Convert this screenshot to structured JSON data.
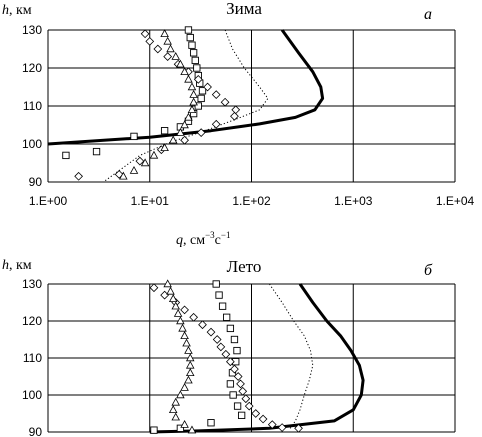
{
  "chart_data": [
    {
      "type": "scatter",
      "panel_label": "a",
      "title": "Зима",
      "ylabel_var": "h",
      "ylabel_unit": ", км",
      "xscale": "log",
      "xlim": [
        1,
        10000
      ],
      "ylim": [
        90,
        130
      ],
      "xticks": [
        "1.E+00",
        "1.E+01",
        "1.E+02",
        "1.E+03",
        "1.E+04"
      ],
      "yticks": [
        "90",
        "100",
        "110",
        "120",
        "130"
      ],
      "grid": true,
      "series": [
        {
          "style": "thick-line",
          "points": [
            [
              200,
              130
            ],
            [
              290,
              124
            ],
            [
              400,
              119
            ],
            [
              480,
              115
            ],
            [
              500,
              112
            ],
            [
              420,
              109
            ],
            [
              270,
              107
            ],
            [
              120,
              105.3
            ],
            [
              40,
              103.5
            ],
            [
              10,
              101.8
            ],
            [
              1,
              100
            ]
          ]
        },
        {
          "style": "dotted-line",
          "points": [
            [
              55,
              130
            ],
            [
              65,
              125
            ],
            [
              85,
              120
            ],
            [
              120,
              115
            ],
            [
              145,
              112
            ],
            [
              120,
              109
            ],
            [
              70,
              106.5
            ],
            [
              35,
              103.5
            ],
            [
              16,
              100.5
            ],
            [
              8,
              97
            ],
            [
              5,
              93
            ],
            [
              3.5,
              90
            ]
          ]
        },
        {
          "style": "small-squares",
          "points": [
            [
              24,
              130
            ],
            [
              25,
              128
            ],
            [
              26,
              126
            ],
            [
              27,
              124
            ],
            [
              28,
              122
            ],
            [
              29,
              120
            ],
            [
              30,
              118
            ],
            [
              31,
              116
            ],
            [
              33,
              114
            ],
            [
              32,
              112
            ],
            [
              30,
              110
            ],
            [
              27,
              108
            ],
            [
              24,
              106
            ],
            [
              20,
              104.5
            ],
            [
              14,
              103.5
            ],
            [
              7,
              102
            ],
            [
              3,
              98
            ],
            [
              1.5,
              97
            ]
          ]
        },
        {
          "style": "diamonds",
          "points": [
            [
              9,
              129
            ],
            [
              10,
              127
            ],
            [
              12,
              125
            ],
            [
              15,
              123
            ],
            [
              19,
              121
            ],
            [
              24,
              119
            ],
            [
              30,
              117
            ],
            [
              37,
              115
            ],
            [
              45,
              113
            ],
            [
              55,
              111
            ],
            [
              70,
              109
            ],
            [
              68,
              107.3
            ],
            [
              45,
              105.2
            ],
            [
              32,
              103
            ],
            [
              22,
              101
            ],
            [
              13,
              98.5
            ],
            [
              8,
              95.5
            ],
            [
              5,
              92
            ],
            [
              2,
              91.5
            ]
          ]
        },
        {
          "style": "triangles",
          "points": [
            [
              14,
              129
            ],
            [
              15,
              127
            ],
            [
              16,
              125
            ],
            [
              18,
              123
            ],
            [
              20,
              121
            ],
            [
              22,
              119
            ],
            [
              24,
              117
            ],
            [
              26,
              115
            ],
            [
              27,
              113
            ],
            [
              27,
              111
            ],
            [
              26,
              109
            ],
            [
              24,
              107
            ],
            [
              22,
              105
            ],
            [
              20,
              103
            ],
            [
              17,
              101
            ],
            [
              14,
              99
            ],
            [
              11,
              97
            ],
            [
              9,
              95
            ],
            [
              7,
              93
            ],
            [
              5.5,
              91.5
            ]
          ]
        }
      ]
    },
    {
      "type": "scatter",
      "panel_label": "б",
      "title": "Лето",
      "ylabel_var": "h",
      "ylabel_unit": ", км",
      "xlabel_var": "q",
      "xlabel_unit": ", см",
      "xlabel_exp1": "−3",
      "xlabel_mid": "c",
      "xlabel_exp2": "−1",
      "xscale": "log",
      "xlim": [
        1,
        10000
      ],
      "ylim": [
        90,
        130
      ],
      "yticks": [
        "90",
        "100",
        "110",
        "120",
        "130"
      ],
      "grid": true,
      "series": [
        {
          "style": "thick-line",
          "points": [
            [
              300,
              130
            ],
            [
              400,
              125
            ],
            [
              550,
              120
            ],
            [
              750,
              116
            ],
            [
              950,
              112
            ],
            [
              1150,
              108
            ],
            [
              1250,
              104
            ],
            [
              1200,
              100
            ],
            [
              1000,
              96
            ],
            [
              650,
              93
            ],
            [
              150,
              91
            ],
            [
              30,
              90.3
            ],
            [
              10,
              90
            ]
          ]
        },
        {
          "style": "dotted-line",
          "points": [
            [
              150,
              130
            ],
            [
              200,
              125
            ],
            [
              260,
              120
            ],
            [
              330,
              116
            ],
            [
              380,
              112
            ],
            [
              400,
              108
            ],
            [
              370,
              104
            ],
            [
              330,
              100
            ],
            [
              300,
              96
            ],
            [
              270,
              93
            ],
            [
              240,
              91
            ]
          ]
        },
        {
          "style": "small-squares",
          "points": [
            [
              45,
              130
            ],
            [
              48,
              127
            ],
            [
              52,
              124
            ],
            [
              57,
              121
            ],
            [
              62,
              118
            ],
            [
              68,
              115
            ],
            [
              72,
              112
            ],
            [
              70,
              109
            ],
            [
              65,
              106
            ],
            [
              62,
              103
            ],
            [
              66,
              100
            ],
            [
              73,
              97
            ],
            [
              80,
              94.5
            ],
            [
              40,
              92.5
            ],
            [
              20,
              91
            ],
            [
              11,
              90.5
            ]
          ]
        },
        {
          "style": "diamonds",
          "points": [
            [
              11,
              129
            ],
            [
              14,
              127
            ],
            [
              18,
              125
            ],
            [
              22,
              123
            ],
            [
              27,
              121
            ],
            [
              33,
              119
            ],
            [
              40,
              117
            ],
            [
              46,
              115
            ],
            [
              50,
              113
            ],
            [
              56,
              111
            ],
            [
              62,
              109
            ],
            [
              68,
              107
            ],
            [
              74,
              105
            ],
            [
              78,
              103
            ],
            [
              82,
              101
            ],
            [
              88,
              99
            ],
            [
              95,
              97
            ],
            [
              110,
              95
            ],
            [
              130,
              93.5
            ],
            [
              160,
              92
            ],
            [
              200,
              91.2
            ],
            [
              290,
              91
            ]
          ]
        },
        {
          "style": "triangles",
          "points": [
            [
              15,
              130
            ],
            [
              16,
              128
            ],
            [
              17,
              126
            ],
            [
              18,
              124
            ],
            [
              19,
              122
            ],
            [
              20,
              120
            ],
            [
              21,
              118
            ],
            [
              22,
              116
            ],
            [
              23,
              114
            ],
            [
              24,
              112
            ],
            [
              25,
              110
            ],
            [
              25,
              108
            ],
            [
              25,
              106
            ],
            [
              24,
              104
            ],
            [
              22,
              102
            ],
            [
              20,
              100
            ],
            [
              18,
              98
            ],
            [
              17,
              96
            ],
            [
              18,
              94
            ],
            [
              22,
              92
            ],
            [
              26,
              90.5
            ]
          ]
        }
      ]
    }
  ]
}
